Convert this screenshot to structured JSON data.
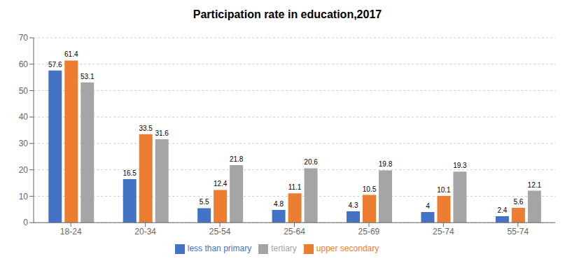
{
  "chart_data": {
    "type": "bar",
    "title": "Participation rate in education,2017",
    "categories": [
      "18-24",
      "20-34",
      "25-54",
      "25-64",
      "25-69",
      "25-74",
      "55-74"
    ],
    "series": [
      {
        "name": "less than primary",
        "color": "#4472C4",
        "values": [
          57.6,
          16.5,
          5.5,
          4.8,
          4.3,
          4.0,
          2.4
        ]
      },
      {
        "name": "upper secondary",
        "color": "#ED7D31",
        "values": [
          61.4,
          33.5,
          12.4,
          11.1,
          10.5,
          10.1,
          5.6
        ]
      },
      {
        "name": "tertiary",
        "color": "#A5A5A5",
        "values": [
          53.1,
          31.6,
          21.8,
          20.6,
          19.8,
          19.3,
          12.1
        ]
      }
    ],
    "ylim": [
      0,
      70
    ],
    "yticks": [
      0,
      10,
      20,
      30,
      40,
      50,
      60,
      70
    ],
    "grid": true,
    "data_labels": true,
    "legend": "bottom"
  }
}
